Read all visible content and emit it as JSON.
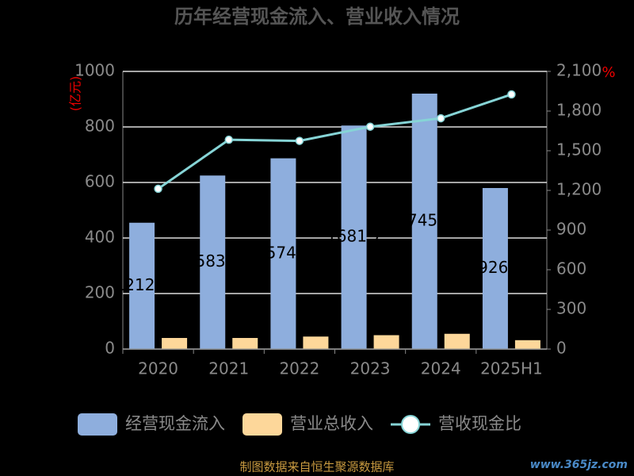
{
  "chart_data": {
    "type": "bar",
    "title": "历年经营现金流入、营业收入情况",
    "y_unit": "(亿元)",
    "y2_unit": "%",
    "categories": [
      "2020",
      "2021",
      "2022",
      "2023",
      "2024",
      "2025H1"
    ],
    "series": [
      {
        "name": "经营现金流入",
        "color": "#8eaedd",
        "type": "bar",
        "values": [
          455,
          625,
          687,
          805,
          920,
          580
        ]
      },
      {
        "name": "营业总收入",
        "color": "#fdd79a",
        "type": "bar",
        "values": [
          40,
          40,
          45,
          50,
          55,
          32
        ]
      },
      {
        "name": "营收现金比",
        "color": "#86d4d6",
        "type": "line",
        "axis": "y2",
        "values": [
          1212.4,
          1583.1,
          1574.6,
          1681.7,
          1745.6,
          1926.1
        ]
      }
    ],
    "ylim": [
      0,
      1000
    ],
    "yticks": [
      0,
      200,
      400,
      600,
      800,
      1000
    ],
    "y2lim": [
      0,
      2100
    ],
    "y2ticks": [
      0,
      300,
      600,
      900,
      {
        "value": 1200,
        "label": "1,200"
      },
      {
        "value": 1500,
        "label": "1,500"
      },
      {
        "value": 1800,
        "label": "1,800"
      },
      {
        "value": 2100,
        "label": "2,100"
      }
    ],
    "grid": true,
    "legend": "bottom",
    "source": "制图数据来自恒生聚源数据库",
    "watermark": "www.365jz.com"
  }
}
